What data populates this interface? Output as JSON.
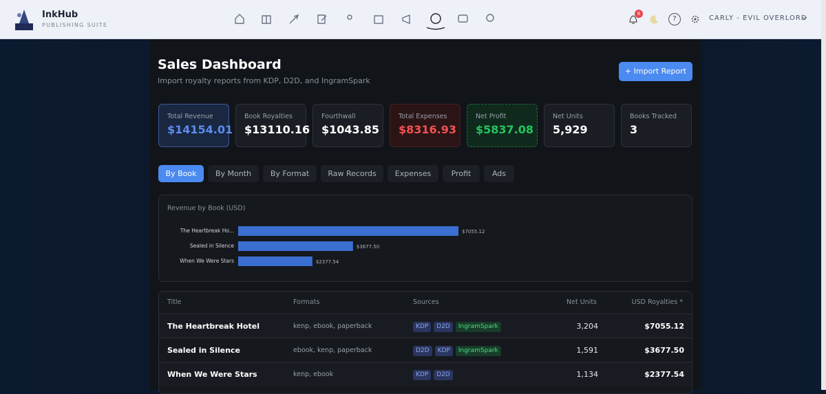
{
  "header": {
    "brand": "InkHub",
    "tagline": "PUBLISHING SUITE",
    "notifications": "8",
    "help": "?",
    "user": "CARLY - EVIL OVERLORD"
  },
  "page": {
    "title": "Sales Dashboard",
    "subtitle": "Import royalty reports from KDP, D2D, and IngramSpark",
    "import_button": "+ Import Report"
  },
  "stats": [
    {
      "label": "Total Revenue",
      "value": "$14154.01"
    },
    {
      "label": "Book Royalties",
      "value": "$13110.16"
    },
    {
      "label": "Fourthwall",
      "value": "$1043.85"
    },
    {
      "label": "Total Expenses",
      "value": "$8316.93"
    },
    {
      "label": "Net Profit",
      "value": "$5837.08"
    },
    {
      "label": "Net Units",
      "value": "5,929"
    },
    {
      "label": "Books Tracked",
      "value": "3"
    }
  ],
  "tabs": [
    "By Book",
    "By Month",
    "By Format",
    "Raw Records",
    "Expenses",
    "Profit",
    "Ads"
  ],
  "chart_data": {
    "type": "bar",
    "orientation": "horizontal",
    "title": "Revenue by Book (USD)",
    "categories": [
      "The Heartbreak Ho...",
      "Sealed in Silence",
      "When We Were Stars"
    ],
    "values": [
      7055.12,
      3677.5,
      2377.54
    ],
    "value_labels": [
      "$7055.12",
      "$3677.50",
      "$2377.54"
    ],
    "color": "#3b6fd1"
  },
  "table": {
    "columns": [
      "Title",
      "Formats",
      "Sources",
      "Net Units",
      "USD Royalties *"
    ],
    "rows": [
      {
        "title": "The Heartbreak Hotel",
        "formats": "kenp, ebook, paperback",
        "sources": [
          "KDP",
          "D2D",
          "IngramSpark"
        ],
        "units": "3,204",
        "royalties": "$7055.12"
      },
      {
        "title": "Sealed in Silence",
        "formats": "ebook, kenp, paperback",
        "sources": [
          "D2D",
          "KDP",
          "IngramSpark"
        ],
        "units": "1,591",
        "royalties": "$3677.50"
      },
      {
        "title": "When We Were Stars",
        "formats": "kenp, ebook",
        "sources": [
          "KDP",
          "D2D"
        ],
        "units": "1,134",
        "royalties": "$2377.54"
      }
    ]
  }
}
